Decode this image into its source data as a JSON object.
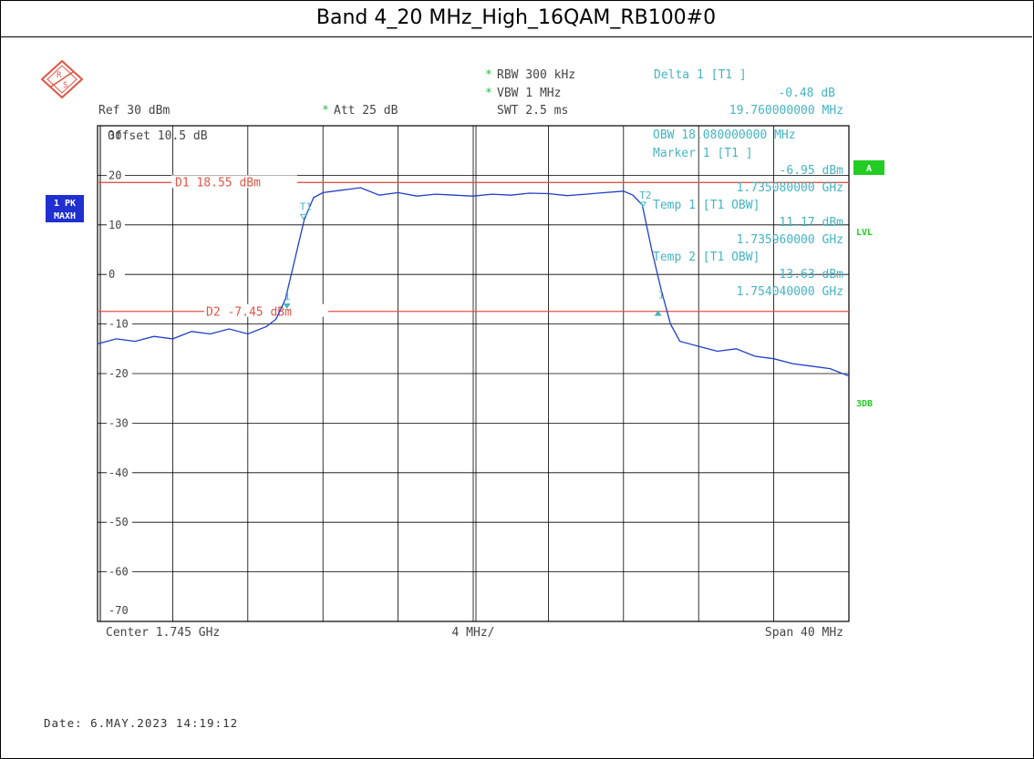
{
  "title": "Band 4_20 MHz_High_16QAM_RB100#0",
  "date": "Date: 6.MAY.2023  14:19:12",
  "header": {
    "rbw_star": "*",
    "rbw": "RBW 300 kHz",
    "vbw_star": "*",
    "vbw": "VBW 1 MHz",
    "swt": "SWT 2.5 ms",
    "ref": "Ref  30 dBm",
    "att_star": "*",
    "att": "Att  25 dB",
    "offset": "Offset  10.5 dB",
    "delta_title": "Delta 1 [T1 ]",
    "delta_value": "-0.48 dB",
    "delta_freq": "19.760000000 MHz",
    "obw": "OBW 18.080000000 MHz",
    "marker1_title": "Marker 1 [T1 ]",
    "marker1_value": "-6.95 dBm",
    "marker1_freq": "1.735080000 GHz",
    "temp1_title": "Temp 1 [T1 OBW]",
    "temp1_value": "11.17 dBm",
    "temp1_freq": "1.735960000 GHz",
    "temp2_title": "Temp 2 [T1 OBW]",
    "temp2_value": "13.63 dBm",
    "temp2_freq": "1.754040000 GHz"
  },
  "left_badges": {
    "line1": "1 PK",
    "line2": "MAXH"
  },
  "right_badges": {
    "a": "A",
    "lvl": "LVL",
    "db3": "3DB"
  },
  "footer": {
    "center": "Center  1.745 GHz",
    "div": "4 MHz/",
    "span": "Span  40 MHz"
  },
  "markers": {
    "d1_label": "D1 18.55 dBm",
    "d2_label": "D2 -7.45 dBm",
    "t1": "T1",
    "t2": "T2",
    "m1": "1"
  },
  "colors": {
    "trace": "#1f3fc8",
    "display_line": "#e05545",
    "annotation": "#45b4c4",
    "grid": "#000000",
    "badge_blue": "#1f2fd0",
    "badge_green": "#22cc22"
  },
  "chart_data": {
    "type": "line",
    "xlabel": "",
    "ylabel": "",
    "x_range_ghz": [
      1.725,
      1.765
    ],
    "ylim": [
      -70,
      30
    ],
    "y_ticks": [
      30,
      20,
      10,
      0,
      -10,
      -20,
      -30,
      -40,
      -50,
      -60,
      -70
    ],
    "grid": true,
    "display_lines": [
      {
        "name": "D1",
        "value": 18.55
      },
      {
        "name": "D2",
        "value": -7.45
      }
    ],
    "series": [
      {
        "x": [
          1.725,
          1.726,
          1.727,
          1.728,
          1.729,
          1.73,
          1.731,
          1.732,
          1.733,
          1.734,
          1.7345,
          1.735,
          1.7355,
          1.736,
          1.7365,
          1.737,
          1.738,
          1.739,
          1.74,
          1.741,
          1.742,
          1.743,
          1.744,
          1.745,
          1.746,
          1.747,
          1.748,
          1.749,
          1.75,
          1.751,
          1.752,
          1.753,
          1.7535,
          1.754,
          1.7545,
          1.755,
          1.7555,
          1.756,
          1.757,
          1.758,
          1.759,
          1.76,
          1.761,
          1.762,
          1.763,
          1.764,
          1.765
        ],
        "y": [
          -14,
          -13,
          -13.5,
          -12.5,
          -13,
          -11.5,
          -12,
          -11,
          -12,
          -10.5,
          -9,
          -5,
          3,
          11,
          15.5,
          16.5,
          17,
          17.5,
          16,
          16.5,
          15.8,
          16.2,
          16,
          15.8,
          16.2,
          16,
          16.4,
          16.3,
          15.9,
          16.2,
          16.5,
          16.8,
          16,
          14,
          5,
          -3,
          -10,
          -13.5,
          -14.5,
          -15.5,
          -15,
          -16.5,
          -17,
          -18,
          -18.5,
          -19,
          -20.5
        ]
      }
    ]
  }
}
